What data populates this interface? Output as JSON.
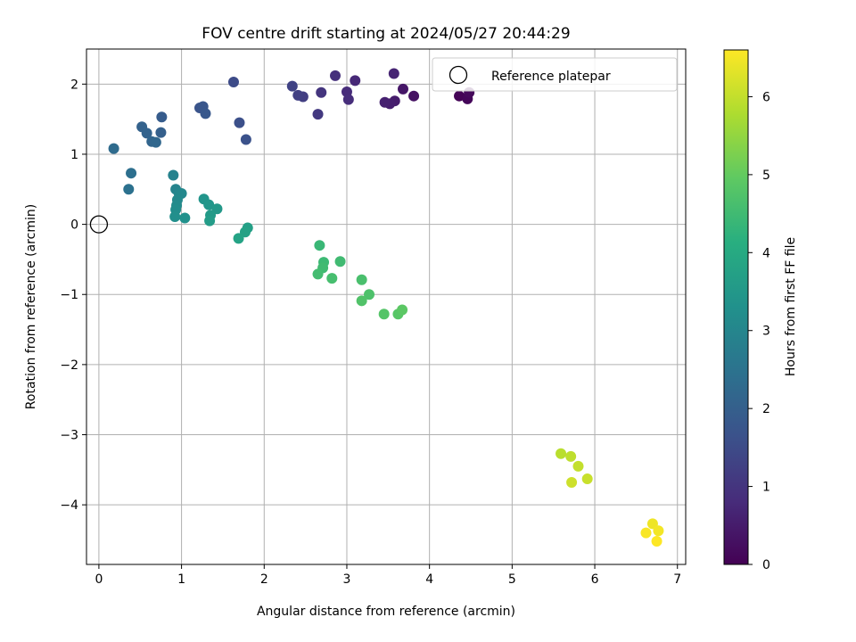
{
  "chart_data": {
    "type": "scatter",
    "title": "FOV centre drift starting at 2024/05/27 20:44:29",
    "xlabel": "Angular distance from reference (arcmin)",
    "ylabel": "Rotation from reference (arcmin)",
    "xlim": [
      -0.15,
      7.1
    ],
    "ylim": [
      -4.85,
      2.5
    ],
    "xticks": [
      0,
      1,
      2,
      3,
      4,
      5,
      6,
      7
    ],
    "xtick_labels": [
      "0",
      "1",
      "2",
      "3",
      "4",
      "5",
      "6",
      "7"
    ],
    "yticks": [
      -4,
      -3,
      -2,
      -1,
      0,
      1,
      2
    ],
    "ytick_labels": [
      "−4",
      "−3",
      "−2",
      "−1",
      "0",
      "1",
      "2"
    ],
    "grid": true,
    "legend": {
      "position": "top-right",
      "entries": [
        "Reference platepar"
      ]
    },
    "reference_point": {
      "x": 0,
      "y": 0,
      "label": "Reference platepar"
    },
    "colorbar": {
      "label": "Hours from first FF file",
      "colormap": "viridis",
      "range": [
        0,
        6.6
      ],
      "ticks": [
        0,
        1,
        2,
        3,
        4,
        5,
        6
      ],
      "tick_labels": [
        "0",
        "1",
        "2",
        "3",
        "4",
        "5",
        "6"
      ]
    },
    "points": [
      {
        "x": 4.36,
        "y": 1.83,
        "c": 0.05
      },
      {
        "x": 4.46,
        "y": 1.79,
        "c": 0.1
      },
      {
        "x": 4.48,
        "y": 1.88,
        "c": 0.15
      },
      {
        "x": 3.81,
        "y": 1.83,
        "c": 0.3
      },
      {
        "x": 3.68,
        "y": 1.93,
        "c": 0.4
      },
      {
        "x": 3.58,
        "y": 1.76,
        "c": 0.5
      },
      {
        "x": 3.52,
        "y": 1.72,
        "c": 0.55
      },
      {
        "x": 3.46,
        "y": 1.74,
        "c": 0.6
      },
      {
        "x": 3.57,
        "y": 2.15,
        "c": 0.65
      },
      {
        "x": 3.1,
        "y": 2.05,
        "c": 0.75
      },
      {
        "x": 3.0,
        "y": 1.89,
        "c": 0.8
      },
      {
        "x": 3.02,
        "y": 1.78,
        "c": 0.85
      },
      {
        "x": 2.86,
        "y": 2.12,
        "c": 0.9
      },
      {
        "x": 2.69,
        "y": 1.88,
        "c": 1.0
      },
      {
        "x": 2.65,
        "y": 1.57,
        "c": 1.1
      },
      {
        "x": 2.47,
        "y": 1.82,
        "c": 1.2
      },
      {
        "x": 2.41,
        "y": 1.84,
        "c": 1.25
      },
      {
        "x": 2.34,
        "y": 1.97,
        "c": 1.3
      },
      {
        "x": 1.63,
        "y": 2.03,
        "c": 1.5
      },
      {
        "x": 1.7,
        "y": 1.45,
        "c": 1.6
      },
      {
        "x": 1.78,
        "y": 1.21,
        "c": 1.65
      },
      {
        "x": 1.22,
        "y": 1.66,
        "c": 1.7
      },
      {
        "x": 1.26,
        "y": 1.68,
        "c": 1.75
      },
      {
        "x": 1.29,
        "y": 1.58,
        "c": 1.8
      },
      {
        "x": 0.76,
        "y": 1.53,
        "c": 1.9
      },
      {
        "x": 0.75,
        "y": 1.31,
        "c": 2.0
      },
      {
        "x": 0.52,
        "y": 1.39,
        "c": 2.05
      },
      {
        "x": 0.58,
        "y": 1.3,
        "c": 2.1
      },
      {
        "x": 0.64,
        "y": 1.18,
        "c": 2.15
      },
      {
        "x": 0.69,
        "y": 1.17,
        "c": 2.2
      },
      {
        "x": 0.18,
        "y": 1.08,
        "c": 2.3
      },
      {
        "x": 0.39,
        "y": 0.73,
        "c": 2.4
      },
      {
        "x": 0.36,
        "y": 0.5,
        "c": 2.45
      },
      {
        "x": 0.9,
        "y": 0.7,
        "c": 2.9
      },
      {
        "x": 0.93,
        "y": 0.5,
        "c": 2.95
      },
      {
        "x": 0.97,
        "y": 0.44,
        "c": 3.0
      },
      {
        "x": 1.0,
        "y": 0.44,
        "c": 3.05
      },
      {
        "x": 0.95,
        "y": 0.35,
        "c": 3.1
      },
      {
        "x": 0.94,
        "y": 0.27,
        "c": 3.15
      },
      {
        "x": 0.93,
        "y": 0.21,
        "c": 3.2
      },
      {
        "x": 0.92,
        "y": 0.11,
        "c": 3.25
      },
      {
        "x": 1.04,
        "y": 0.09,
        "c": 3.3
      },
      {
        "x": 1.27,
        "y": 0.36,
        "c": 3.4
      },
      {
        "x": 1.33,
        "y": 0.28,
        "c": 3.45
      },
      {
        "x": 1.43,
        "y": 0.22,
        "c": 3.5
      },
      {
        "x": 1.35,
        "y": 0.13,
        "c": 3.55
      },
      {
        "x": 1.34,
        "y": 0.05,
        "c": 3.6
      },
      {
        "x": 1.8,
        "y": -0.05,
        "c": 3.7
      },
      {
        "x": 1.77,
        "y": -0.11,
        "c": 3.75
      },
      {
        "x": 1.69,
        "y": -0.2,
        "c": 3.8
      },
      {
        "x": 2.67,
        "y": -0.3,
        "c": 4.4
      },
      {
        "x": 2.72,
        "y": -0.54,
        "c": 4.45
      },
      {
        "x": 2.92,
        "y": -0.53,
        "c": 4.5
      },
      {
        "x": 2.71,
        "y": -0.62,
        "c": 4.5
      },
      {
        "x": 2.65,
        "y": -0.71,
        "c": 4.55
      },
      {
        "x": 2.82,
        "y": -0.77,
        "c": 4.6
      },
      {
        "x": 3.18,
        "y": -0.79,
        "c": 4.65
      },
      {
        "x": 3.27,
        "y": -1.0,
        "c": 4.7
      },
      {
        "x": 3.18,
        "y": -1.09,
        "c": 4.75
      },
      {
        "x": 3.45,
        "y": -1.28,
        "c": 4.8
      },
      {
        "x": 3.62,
        "y": -1.28,
        "c": 4.85
      },
      {
        "x": 3.67,
        "y": -1.22,
        "c": 4.9
      },
      {
        "x": 5.59,
        "y": -3.27,
        "c": 5.9
      },
      {
        "x": 5.71,
        "y": -3.31,
        "c": 5.95
      },
      {
        "x": 5.8,
        "y": -3.45,
        "c": 6.0
      },
      {
        "x": 5.91,
        "y": -3.63,
        "c": 6.05
      },
      {
        "x": 5.72,
        "y": -3.68,
        "c": 6.1
      },
      {
        "x": 6.7,
        "y": -4.27,
        "c": 6.45
      },
      {
        "x": 6.77,
        "y": -4.37,
        "c": 6.5
      },
      {
        "x": 6.62,
        "y": -4.4,
        "c": 6.55
      },
      {
        "x": 6.75,
        "y": -4.52,
        "c": 6.6
      }
    ]
  }
}
